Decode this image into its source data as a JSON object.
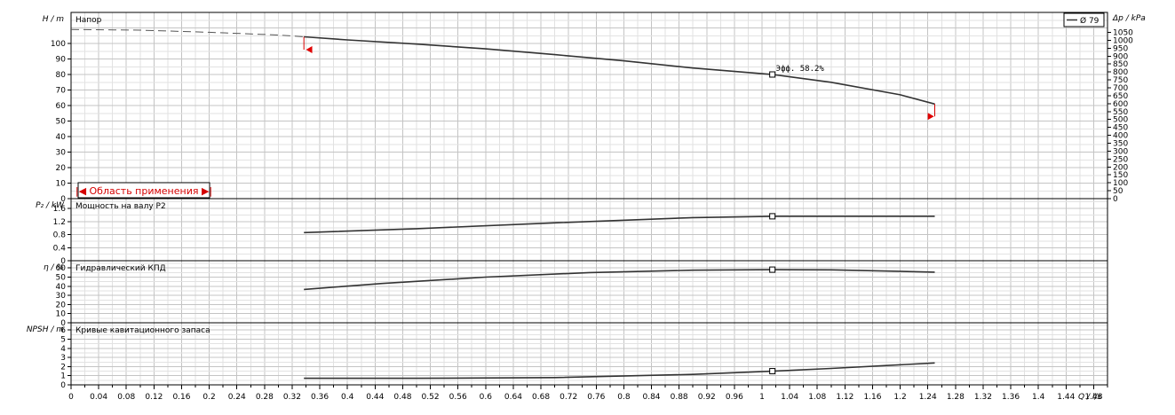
{
  "chart_data": {
    "type": "line",
    "x_label": "Q / l/s",
    "x_ticks": [
      0,
      0.04,
      0.08,
      0.12,
      0.16,
      0.2,
      0.24,
      0.28,
      0.32,
      0.36,
      0.4,
      0.44,
      0.48,
      0.52,
      0.56,
      0.6,
      0.64,
      0.68,
      0.72,
      0.76,
      0.8,
      0.84,
      0.88,
      0.92,
      0.96,
      1,
      1.04,
      1.08,
      1.12,
      1.16,
      1.2,
      1.24,
      1.28,
      1.32,
      1.36,
      1.4,
      1.44,
      1.48
    ],
    "xlim": [
      0,
      1.5
    ],
    "legend_label": "Ø 79",
    "application_range_label": "|◀ Область применения ▶|",
    "operating_point": {
      "q": 1.015,
      "annotation": "Эфф. 58.2%"
    },
    "panels": [
      {
        "key": "head",
        "title": "Напор",
        "ylabel": "H / m",
        "ylim": [
          0,
          120
        ],
        "yticks": [
          0,
          10,
          20,
          30,
          40,
          50,
          60,
          70,
          80,
          90,
          100
        ],
        "right_axis": {
          "label": "Δp / kPa",
          "ylim": [
            0,
            1176
          ],
          "ticks": [
            0,
            50,
            100,
            150,
            200,
            250,
            300,
            350,
            400,
            450,
            500,
            550,
            600,
            650,
            700,
            750,
            800,
            850,
            900,
            950,
            1000,
            1050
          ]
        },
        "dashed_series": {
          "x": [
            0,
            0.1,
            0.2,
            0.3,
            0.337
          ],
          "y": [
            109,
            108.6,
            107.2,
            105.4,
            104.3
          ]
        },
        "series": {
          "x": [
            0.337,
            0.4,
            0.5,
            0.6,
            0.7,
            0.8,
            0.9,
            1.0,
            1.015,
            1.1,
            1.2,
            1.25
          ],
          "y": [
            104.3,
            102.3,
            99.6,
            96.5,
            92.8,
            88.8,
            84.2,
            80.5,
            80.0,
            75.0,
            66.9,
            61.0
          ]
        },
        "op_value": 80.0,
        "range_markers": [
          {
            "q": 0.34,
            "y": 96
          },
          {
            "q": 1.245,
            "y": 53
          }
        ]
      },
      {
        "key": "power",
        "title": "Мощность на валу  P2",
        "ylabel": "P₂ / kW",
        "ylim": [
          0,
          1.9
        ],
        "yticks": [
          0,
          0.4,
          0.8,
          1.2,
          1.6
        ],
        "series": {
          "x": [
            0.337,
            0.5,
            0.7,
            0.9,
            1.015,
            1.1,
            1.25
          ],
          "y": [
            0.86,
            0.98,
            1.16,
            1.32,
            1.36,
            1.36,
            1.36
          ]
        },
        "op_value": 1.36
      },
      {
        "key": "efficiency",
        "title": "Гидравлический КПД",
        "ylabel": "η / %",
        "ylim": [
          0,
          68
        ],
        "yticks": [
          0,
          10,
          20,
          30,
          40,
          50,
          60
        ],
        "series": {
          "x": [
            0.337,
            0.45,
            0.6,
            0.75,
            0.9,
            1.015,
            1.1,
            1.25
          ],
          "y": [
            36.5,
            43,
            50,
            55,
            57.6,
            58.2,
            58.0,
            55.5
          ]
        },
        "op_value": 58.2
      },
      {
        "key": "npsh",
        "title": "Кривые кавитационного запаса",
        "ylabel": "NPSH / m",
        "ylim": [
          0,
          6.8
        ],
        "yticks": [
          0,
          1,
          2,
          3,
          4,
          5,
          6
        ],
        "series": {
          "x": [
            0.337,
            0.5,
            0.7,
            0.9,
            1.015,
            1.1,
            1.25
          ],
          "y": [
            0.72,
            0.72,
            0.8,
            1.15,
            1.5,
            1.8,
            2.4
          ]
        },
        "op_value": 1.5
      }
    ]
  }
}
